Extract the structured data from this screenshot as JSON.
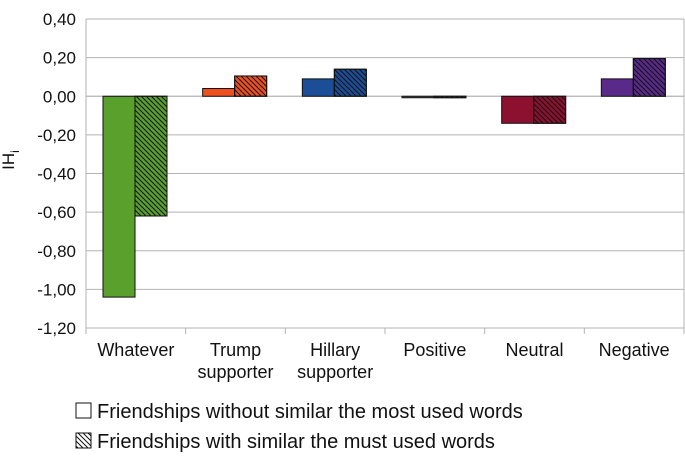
{
  "chart_data": {
    "type": "bar",
    "title": "",
    "xlabel": "",
    "ylabel": "IH",
    "ylabel_sub": "i",
    "ylim": [
      -1.2,
      0.4
    ],
    "yticks": [
      0.4,
      0.2,
      0.0,
      -0.2,
      -0.4,
      -0.6,
      -0.8,
      -1.0,
      -1.2
    ],
    "ytick_labels": [
      "0,40",
      "0,20",
      "0,00",
      "-0,20",
      "-0,40",
      "-0,60",
      "-0,80",
      "-1,00",
      "-1,20"
    ],
    "grid": true,
    "legend_position": "bottom",
    "categories": [
      {
        "lines": [
          "Whatever"
        ]
      },
      {
        "lines": [
          "Trump",
          "supporter"
        ]
      },
      {
        "lines": [
          "Hillary",
          "supporter"
        ]
      },
      {
        "lines": [
          "Positive"
        ]
      },
      {
        "lines": [
          "Neutral"
        ]
      },
      {
        "lines": [
          "Negative"
        ]
      }
    ],
    "colors": [
      "#5aa02c",
      "#f0501e",
      "#1b4e96",
      "#6a6a6a",
      "#8c1030",
      "#5a2a8a"
    ],
    "series": [
      {
        "name": "Friendships without similar the most used words",
        "pattern": "solid",
        "values": [
          -1.04,
          0.04,
          0.09,
          -0.002,
          -0.14,
          0.09
        ]
      },
      {
        "name": "Friendships with similar the must used words",
        "pattern": "hatched",
        "values": [
          -0.62,
          0.105,
          0.14,
          -0.005,
          -0.14,
          0.195
        ]
      }
    ]
  }
}
